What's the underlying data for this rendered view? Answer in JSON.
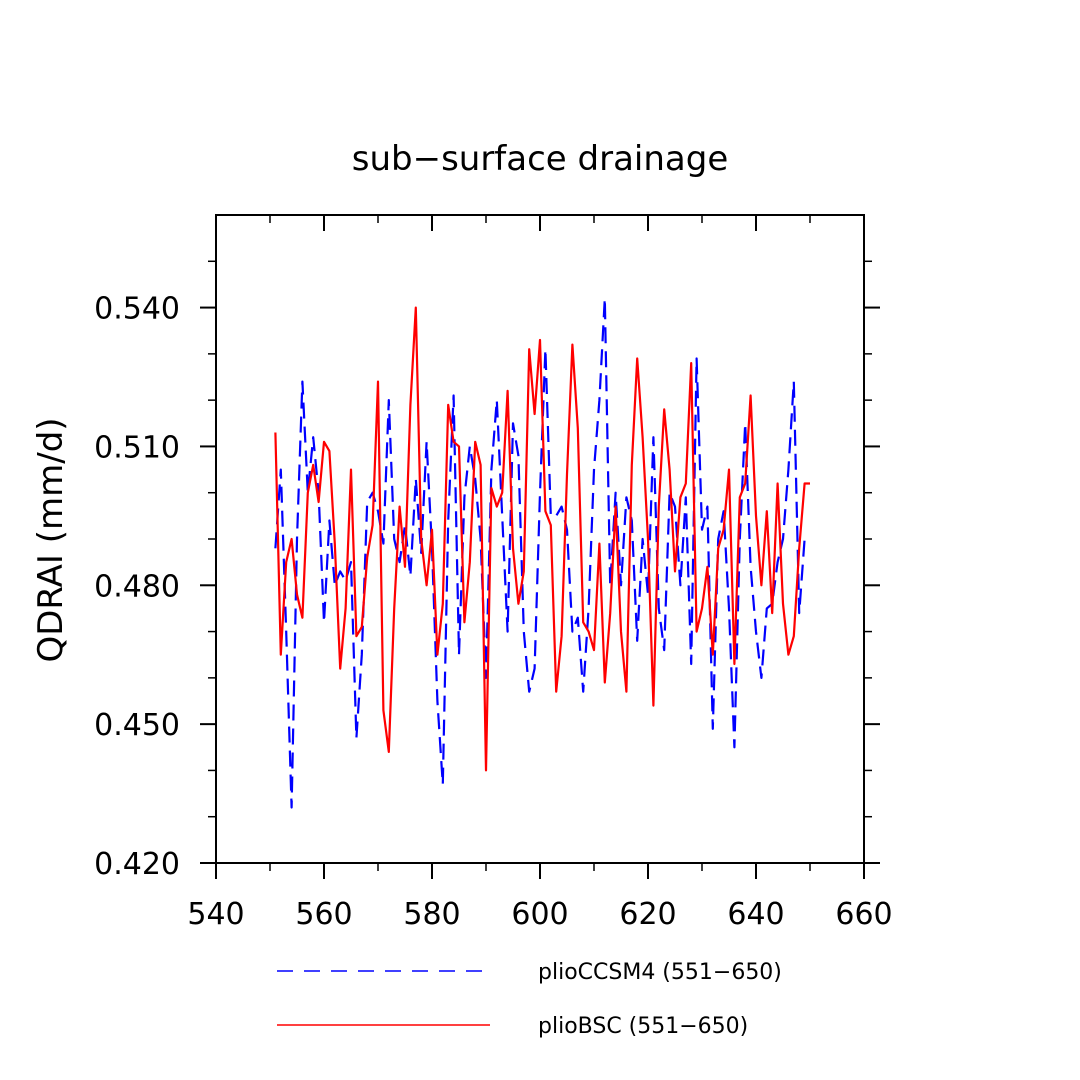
{
  "chart_data": {
    "type": "line",
    "title": "sub−surface drainage",
    "xlabel": "",
    "ylabel": "QDRAI  (mm/d)",
    "xlim": [
      540,
      660
    ],
    "ylim": [
      0.42,
      0.56
    ],
    "x_ticks": [
      540,
      560,
      580,
      600,
      620,
      640,
      660
    ],
    "y_ticks": [
      0.42,
      0.45,
      0.48,
      0.51,
      0.54
    ],
    "x_tick_labels": [
      "540",
      "560",
      "580",
      "600",
      "620",
      "640",
      "660"
    ],
    "y_tick_labels": [
      "0.420",
      "0.450",
      "0.480",
      "0.510",
      "0.540"
    ],
    "grid": false,
    "legend_position": "bottom",
    "x_start": 551,
    "series": [
      {
        "name": "plioCCSM4 (551−650)",
        "color": "#0000ff",
        "style": "dashed",
        "values": [
          0.488,
          0.505,
          0.47,
          0.432,
          0.49,
          0.524,
          0.5,
          0.512,
          0.5,
          0.472,
          0.494,
          0.48,
          0.483,
          0.481,
          0.485,
          0.447,
          0.465,
          0.498,
          0.5,
          0.496,
          0.489,
          0.52,
          0.49,
          0.485,
          0.493,
          0.482,
          0.503,
          0.487,
          0.511,
          0.488,
          0.455,
          0.437,
          0.494,
          0.521,
          0.465,
          0.499,
          0.51,
          0.503,
          0.49,
          0.46,
          0.505,
          0.52,
          0.495,
          0.47,
          0.515,
          0.508,
          0.47,
          0.457,
          0.462,
          0.5,
          0.531,
          0.495,
          0.495,
          0.497,
          0.492,
          0.47,
          0.473,
          0.457,
          0.475,
          0.505,
          0.52,
          0.542,
          0.48,
          0.5,
          0.48,
          0.499,
          0.494,
          0.468,
          0.49,
          0.478,
          0.512,
          0.475,
          0.466,
          0.5,
          0.497,
          0.48,
          0.499,
          0.463,
          0.529,
          0.492,
          0.497,
          0.449,
          0.49,
          0.496,
          0.475,
          0.445,
          0.49,
          0.515,
          0.484,
          0.47,
          0.46,
          0.475,
          0.476,
          0.485,
          0.49,
          0.505,
          0.524,
          0.474,
          0.49,
          0.49
        ]
      },
      {
        "name": "plioBSC (551−650)",
        "color": "#ff0000",
        "style": "solid",
        "values": [
          0.513,
          0.465,
          0.485,
          0.49,
          0.478,
          0.473,
          0.5,
          0.506,
          0.498,
          0.511,
          0.509,
          0.489,
          0.462,
          0.475,
          0.505,
          0.469,
          0.471,
          0.486,
          0.493,
          0.524,
          0.453,
          0.444,
          0.475,
          0.497,
          0.484,
          0.519,
          0.54,
          0.49,
          0.48,
          0.492,
          0.465,
          0.476,
          0.519,
          0.511,
          0.51,
          0.472,
          0.485,
          0.511,
          0.506,
          0.44,
          0.501,
          0.497,
          0.5,
          0.522,
          0.488,
          0.476,
          0.483,
          0.531,
          0.517,
          0.533,
          0.496,
          0.493,
          0.457,
          0.469,
          0.504,
          0.532,
          0.514,
          0.472,
          0.47,
          0.466,
          0.489,
          0.459,
          0.474,
          0.497,
          0.47,
          0.457,
          0.506,
          0.529,
          0.512,
          0.49,
          0.454,
          0.497,
          0.518,
          0.505,
          0.483,
          0.499,
          0.502,
          0.528,
          0.47,
          0.475,
          0.484,
          0.465,
          0.488,
          0.492,
          0.505,
          0.463,
          0.499,
          0.502,
          0.521,
          0.495,
          0.48,
          0.496,
          0.474,
          0.502,
          0.476,
          0.465,
          0.469,
          0.488,
          0.502,
          0.502
        ]
      }
    ]
  }
}
